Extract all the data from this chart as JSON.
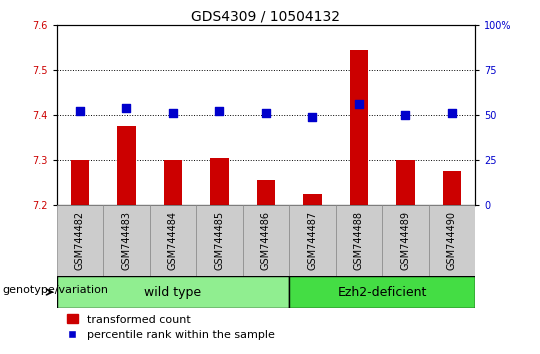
{
  "title": "GDS4309 / 10504132",
  "samples": [
    "GSM744482",
    "GSM744483",
    "GSM744484",
    "GSM744485",
    "GSM744486",
    "GSM744487",
    "GSM744488",
    "GSM744489",
    "GSM744490"
  ],
  "transformed_count": [
    7.3,
    7.375,
    7.3,
    7.305,
    7.255,
    7.225,
    7.545,
    7.3,
    7.275
  ],
  "percentile_rank": [
    52,
    54,
    51,
    52,
    51,
    49,
    56,
    50,
    51
  ],
  "ylim_left": [
    7.2,
    7.6
  ],
  "ylim_right": [
    0,
    100
  ],
  "yticks_left": [
    7.2,
    7.3,
    7.4,
    7.5,
    7.6
  ],
  "yticks_right": [
    0,
    25,
    50,
    75,
    100
  ],
  "bar_color": "#cc0000",
  "dot_color": "#0000cc",
  "bar_width": 0.4,
  "dot_size": 40,
  "wild_type_indices": [
    0,
    1,
    2,
    3,
    4
  ],
  "ezh2_indices": [
    5,
    6,
    7,
    8
  ],
  "wild_type_label": "wild type",
  "ezh2_label": "Ezh2-deficient",
  "group_color_wild": "#90ee90",
  "group_color_ezh2": "#44dd44",
  "genotype_label": "genotype/variation",
  "legend_bar_label": "transformed count",
  "legend_dot_label": "percentile rank within the sample",
  "tick_label_color_left": "#cc0000",
  "tick_label_color_right": "#0000cc",
  "sample_box_color": "#cccccc",
  "title_fontsize": 10,
  "tick_fontsize": 7,
  "sample_fontsize": 7,
  "group_fontsize": 9,
  "legend_fontsize": 8,
  "genotype_fontsize": 8
}
